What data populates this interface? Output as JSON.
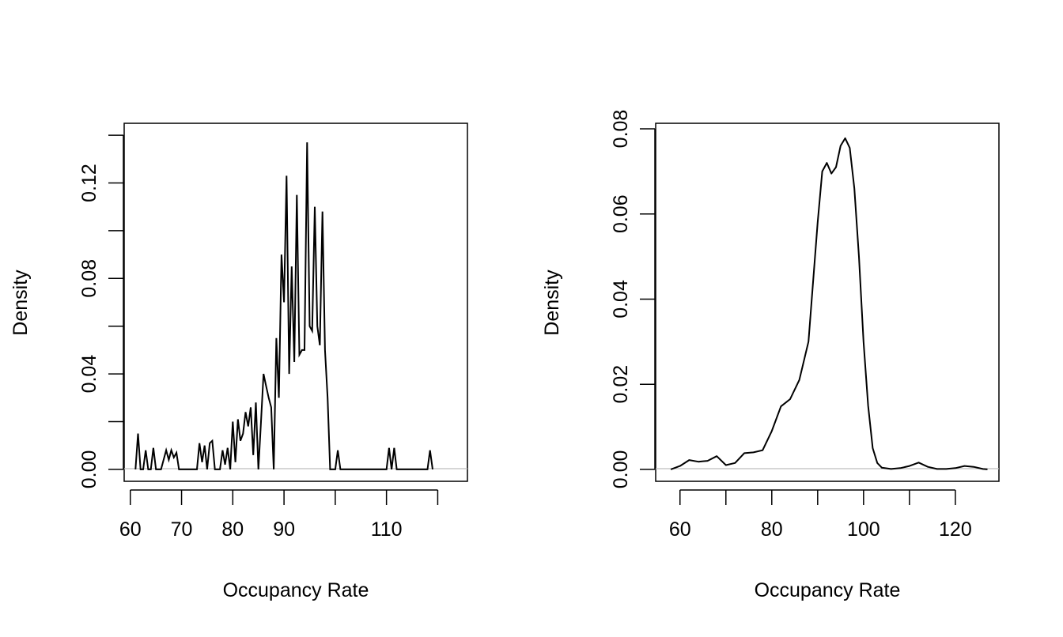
{
  "chart_data": [
    {
      "type": "line",
      "title": "",
      "xlabel": "Occupancy Rate",
      "ylabel": "Density",
      "x_ticks": [
        60,
        70,
        80,
        90,
        100,
        110,
        120
      ],
      "x_tick_labels": [
        "60",
        "70",
        "80",
        "90",
        "",
        "110",
        ""
      ],
      "y_ticks": [
        0.0,
        0.02,
        0.04,
        0.06,
        0.08,
        0.1,
        0.12,
        0.14
      ],
      "y_tick_labels": [
        "0.00",
        "",
        "0.04",
        "",
        "0.08",
        "",
        "0.12",
        ""
      ],
      "xlim": [
        58.8,
        125.8
      ],
      "ylim": [
        -0.005,
        0.145
      ],
      "grid": false,
      "zero_line_color": "#bebebe",
      "line_color": "#000000",
      "description": "Very low-bandwidth kernel density estimate (spiky)",
      "x": [
        61.0,
        61.5,
        62.0,
        62.5,
        63.0,
        63.5,
        64.0,
        64.5,
        65.0,
        65.5,
        66.0,
        67.0,
        67.5,
        68.0,
        68.5,
        69.0,
        69.5,
        70.0,
        73.0,
        73.5,
        74.0,
        74.5,
        75.0,
        75.5,
        76.0,
        76.5,
        77.0,
        77.5,
        78.0,
        78.5,
        79.0,
        79.5,
        80.0,
        80.5,
        81.0,
        81.5,
        82.0,
        82.5,
        83.0,
        83.5,
        84.0,
        84.5,
        85.0,
        85.5,
        86.0,
        86.5,
        87.0,
        87.5,
        88.0,
        88.5,
        89.0,
        89.5,
        90.0,
        90.5,
        91.0,
        91.5,
        92.0,
        92.5,
        93.0,
        93.5,
        94.0,
        94.5,
        95.0,
        95.5,
        96.0,
        96.5,
        97.0,
        97.5,
        98.0,
        98.5,
        99.0,
        99.5,
        100.0,
        100.5,
        101.0,
        101.5,
        102.0,
        110.0,
        110.5,
        111.0,
        111.5,
        112.0,
        118.0,
        118.5,
        119.0
      ],
      "y": [
        0.0,
        0.015,
        0.0,
        0.0,
        0.008,
        0.0,
        0.0,
        0.009,
        0.0,
        0.0,
        0.0,
        0.008,
        0.004,
        0.008,
        0.005,
        0.007,
        0.0,
        0.0,
        0.0,
        0.011,
        0.003,
        0.01,
        0.0,
        0.011,
        0.012,
        0.0,
        0.0,
        0.0,
        0.008,
        0.002,
        0.009,
        0.0,
        0.02,
        0.003,
        0.021,
        0.012,
        0.015,
        0.024,
        0.018,
        0.026,
        0.006,
        0.028,
        0.0,
        0.02,
        0.04,
        0.035,
        0.03,
        0.026,
        0.0,
        0.055,
        0.03,
        0.09,
        0.07,
        0.123,
        0.04,
        0.085,
        0.045,
        0.115,
        0.048,
        0.05,
        0.05,
        0.137,
        0.06,
        0.058,
        0.11,
        0.06,
        0.052,
        0.108,
        0.05,
        0.03,
        0.0,
        0.0,
        0.0,
        0.008,
        0.0,
        0.0,
        0.0,
        0.0,
        0.009,
        0.0,
        0.009,
        0.0,
        0.0,
        0.008,
        0.0
      ]
    },
    {
      "type": "line",
      "title": "",
      "xlabel": "Occupancy Rate",
      "ylabel": "Density",
      "x_ticks": [
        60,
        70,
        80,
        90,
        100,
        110,
        120
      ],
      "x_tick_labels": [
        "60",
        "",
        "80",
        "",
        "100",
        "",
        "120"
      ],
      "y_ticks": [
        0.0,
        0.02,
        0.04,
        0.06,
        0.08
      ],
      "y_tick_labels": [
        "0.00",
        "0.02",
        "0.04",
        "0.06",
        "0.08"
      ],
      "xlim": [
        54.7,
        129.5
      ],
      "ylim": [
        -0.0028,
        0.0813
      ],
      "grid": false,
      "zero_line_color": "#bebebe",
      "line_color": "#000000",
      "description": "Smooth kernel density estimate, bimodal peak near 92 and 96",
      "x": [
        58,
        60,
        62,
        64,
        66,
        68,
        70,
        72,
        74,
        76,
        78,
        80,
        82,
        84,
        86,
        88,
        90,
        91,
        92,
        93,
        94,
        95,
        96,
        97,
        98,
        99,
        100,
        101,
        102,
        103,
        104,
        106,
        108,
        110,
        112,
        114,
        116,
        118,
        120,
        122,
        124,
        126,
        127
      ],
      "y": [
        0.0,
        0.0008,
        0.0022,
        0.0018,
        0.002,
        0.0031,
        0.001,
        0.0015,
        0.0038,
        0.004,
        0.0045,
        0.009,
        0.0148,
        0.0165,
        0.021,
        0.03,
        0.058,
        0.07,
        0.072,
        0.0695,
        0.071,
        0.076,
        0.0778,
        0.0755,
        0.066,
        0.05,
        0.03,
        0.015,
        0.005,
        0.0015,
        0.0004,
        0.0001,
        0.0003,
        0.0008,
        0.0016,
        0.0006,
        0.0001,
        0.0001,
        0.0003,
        0.0008,
        0.0006,
        0.0001,
        0.0
      ]
    }
  ]
}
